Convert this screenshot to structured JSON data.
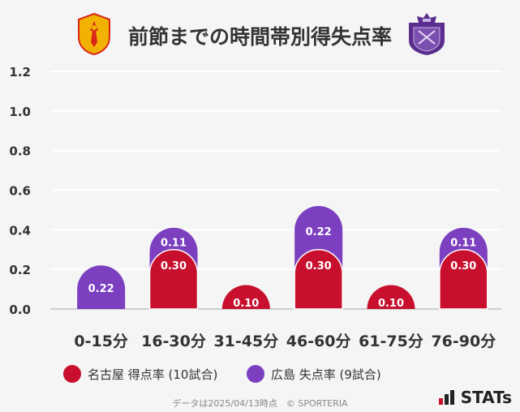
{
  "header": {
    "title": "前節までの時間帯別得失点率",
    "left_logo_icon": "nagoya-crest-icon",
    "right_logo_icon": "hiroshima-crest-icon"
  },
  "chart_data": {
    "type": "bar",
    "stacked": true,
    "categories": [
      "0-15分",
      "16-30分",
      "31-45分",
      "46-60分",
      "61-75分",
      "76-90分"
    ],
    "series": [
      {
        "name": "名古屋 得点率 (10試合)",
        "color": "#c8102e",
        "values": [
          0,
          0.3,
          0.1,
          0.3,
          0.1,
          0.3
        ],
        "labels": [
          "",
          "0.30",
          "0.10",
          "0.30",
          "0.10",
          "0.30"
        ]
      },
      {
        "name": "広島 失点率 (9試合)",
        "color": "#7b3fbf",
        "values": [
          0.22,
          0.11,
          0,
          0.22,
          0,
          0.11
        ],
        "labels": [
          "0.22",
          "0.11",
          "",
          "0.22",
          "",
          "0.11"
        ]
      }
    ],
    "yticks": [
      "0.0",
      "0.2",
      "0.4",
      "0.6",
      "0.8",
      "1.0",
      "1.2"
    ],
    "ylim": [
      0,
      1.2
    ],
    "grid": true,
    "legend_position": "bottom"
  },
  "legend": {
    "nagoya": "名古屋 得点率 (10試合)",
    "hiroshima": "広島 失点率 (9試合)"
  },
  "footer": {
    "note": "データは2025/04/13時点　© SPORTERIA",
    "brand": "STATs"
  }
}
